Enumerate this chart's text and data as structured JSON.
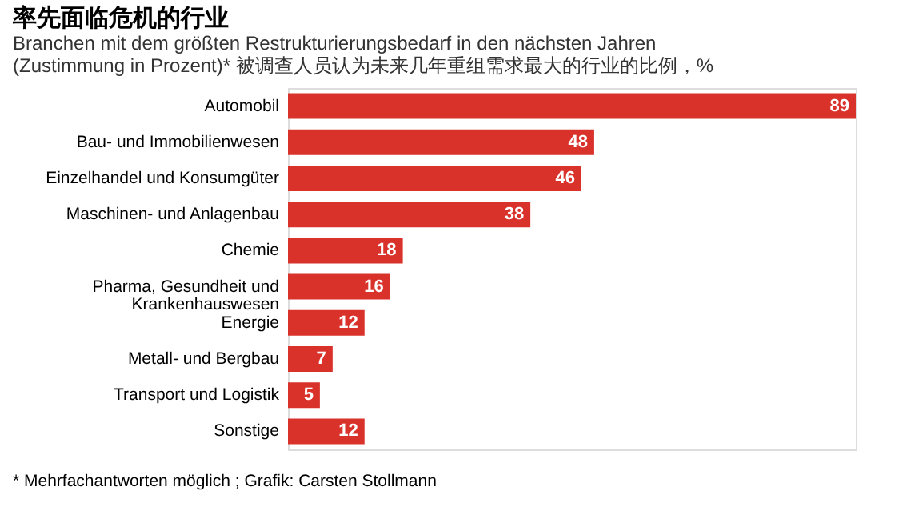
{
  "chart_data": {
    "type": "bar",
    "orientation": "horizontal",
    "title": "率先面临危机的行业",
    "subtitle": "Branchen mit dem größten Restrukturierungsbedarf in den nächsten Jahren\n(Zustimmung in Prozent)* 被调查人员认为未来几年重组需求最大的行业的比例，%",
    "categories": [
      "Automobil",
      "Bau- und Immobilienwesen",
      "Einzelhandel und Konsumgüter",
      "Maschinen- und Anlagenbau",
      "Chemie",
      "Pharma, Gesundheit und\nKrankenhauswesen",
      "Energie",
      "Metall- und Bergbau",
      "Transport und Logistik",
      "Sonstige"
    ],
    "values": [
      89,
      48,
      46,
      38,
      18,
      16,
      12,
      7,
      5,
      12
    ],
    "color": "#d9322b",
    "data_labels": true,
    "grid": false,
    "annotations": [
      "* Mehrfachantworten möglich ; Grafik: Carsten Stollmann"
    ]
  }
}
